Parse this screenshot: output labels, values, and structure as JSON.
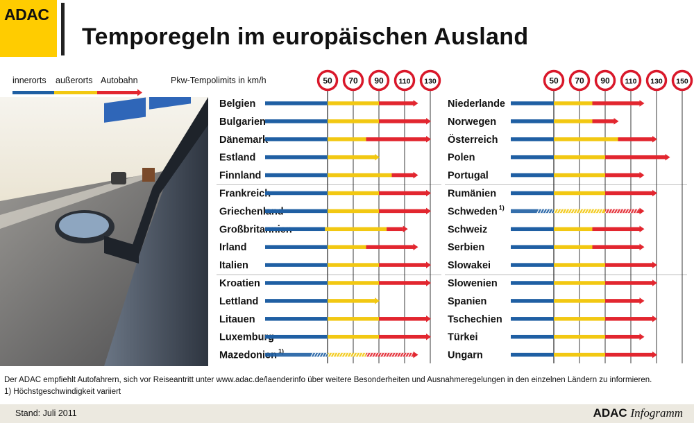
{
  "header": {
    "logo": "ADAC",
    "title": "Temporegeln im europäischen Ausland"
  },
  "legend": {
    "entries": [
      "innerorts",
      "außerorts",
      "Autobahn"
    ],
    "unit_label": "Pkw-Tempolimits in km/h"
  },
  "colors": {
    "innerorts": "#1f5fa3",
    "ausserorts": "#f2c812",
    "autobahn": "#e2262f",
    "sign_ring": "#d9182a",
    "logo": "#ffcc00"
  },
  "chart_data": [
    {
      "type": "bar",
      "subtype": "stacked-range",
      "speed_ticks": [
        50,
        70,
        90,
        110,
        130
      ],
      "series": [
        "innerorts",
        "außerorts",
        "Autobahn"
      ],
      "rows": [
        {
          "country": "Belgien",
          "innerorts": 50,
          "ausserorts": 90,
          "autobahn": 120
        },
        {
          "country": "Bulgarien",
          "innerorts": 50,
          "ausserorts": 90,
          "autobahn": 130
        },
        {
          "country": "Dänemark",
          "innerorts": 50,
          "ausserorts": 80,
          "autobahn": 130
        },
        {
          "country": "Estland",
          "innerorts": 50,
          "ausserorts": 90,
          "autobahn": null
        },
        {
          "country": "Finnland",
          "innerorts": 50,
          "ausserorts": 100,
          "autobahn": 120
        },
        {
          "country": "Frankreich",
          "innerorts": 50,
          "ausserorts": 90,
          "autobahn": 130
        },
        {
          "country": "Griechenland",
          "innerorts": 50,
          "ausserorts": 90,
          "autobahn": 130
        },
        {
          "country": "Großbritannien",
          "innerorts": 48,
          "ausserorts": 96,
          "autobahn": 112
        },
        {
          "country": "Irland",
          "innerorts": 50,
          "ausserorts": 80,
          "autobahn": 120
        },
        {
          "country": "Italien",
          "innerorts": 50,
          "ausserorts": 90,
          "autobahn": 130
        },
        {
          "country": "Kroatien",
          "innerorts": 50,
          "ausserorts": 90,
          "autobahn": 130
        },
        {
          "country": "Lettland",
          "innerorts": 50,
          "ausserorts": 90,
          "autobahn": null
        },
        {
          "country": "Litauen",
          "innerorts": 50,
          "ausserorts": 90,
          "autobahn": 130
        },
        {
          "country": "Luxemburg",
          "innerorts": 50,
          "ausserorts": 90,
          "autobahn": 130
        },
        {
          "country": "Mazedonien",
          "footnote": "1)",
          "variable": true,
          "innerorts": 50,
          "ausserorts": 80,
          "autobahn": 120
        }
      ]
    },
    {
      "type": "bar",
      "subtype": "stacked-range",
      "speed_ticks": [
        50,
        70,
        90,
        110,
        130,
        150
      ],
      "series": [
        "innerorts",
        "außerorts",
        "Autobahn"
      ],
      "rows": [
        {
          "country": "Niederlande",
          "innerorts": 50,
          "ausserorts": 80,
          "autobahn": 120
        },
        {
          "country": "Norwegen",
          "innerorts": 50,
          "ausserorts": 80,
          "autobahn": 100
        },
        {
          "country": "Österreich",
          "innerorts": 50,
          "ausserorts": 100,
          "autobahn": 130
        },
        {
          "country": "Polen",
          "innerorts": 50,
          "ausserorts": 90,
          "autobahn": 140
        },
        {
          "country": "Portugal",
          "innerorts": 50,
          "ausserorts": 90,
          "autobahn": 120
        },
        {
          "country": "Rumänien",
          "innerorts": 50,
          "ausserorts": 90,
          "autobahn": 130
        },
        {
          "country": "Schweden",
          "footnote": "1)",
          "variable": true,
          "innerorts": 50,
          "ausserorts": 90,
          "autobahn": 120
        },
        {
          "country": "Schweiz",
          "innerorts": 50,
          "ausserorts": 80,
          "autobahn": 120
        },
        {
          "country": "Serbien",
          "innerorts": 50,
          "ausserorts": 80,
          "autobahn": 120
        },
        {
          "country": "Slowakei",
          "innerorts": 50,
          "ausserorts": 90,
          "autobahn": 130
        },
        {
          "country": "Slowenien",
          "innerorts": 50,
          "ausserorts": 90,
          "autobahn": 130
        },
        {
          "country": "Spanien",
          "innerorts": 50,
          "ausserorts": 90,
          "autobahn": 120
        },
        {
          "country": "Tschechien",
          "innerorts": 50,
          "ausserorts": 90,
          "autobahn": 130
        },
        {
          "country": "Türkei",
          "innerorts": 50,
          "ausserorts": 90,
          "autobahn": 120
        },
        {
          "country": "Ungarn",
          "innerorts": 50,
          "ausserorts": 90,
          "autobahn": 130
        }
      ]
    }
  ],
  "footnote": {
    "line1": "Der ADAC empfiehlt Autofahrern, sich vor Reiseantritt unter www.adac.de/laenderinfo über weitere Besonderheiten und Ausnahmeregelungen in den einzelnen Ländern zu informieren.",
    "line2": "1) Höchstgeschwindigkeit variiert"
  },
  "footer": {
    "stand": "Stand: Juli 2011",
    "brand_bold": "ADAC",
    "brand_italic": "Infogramm"
  }
}
